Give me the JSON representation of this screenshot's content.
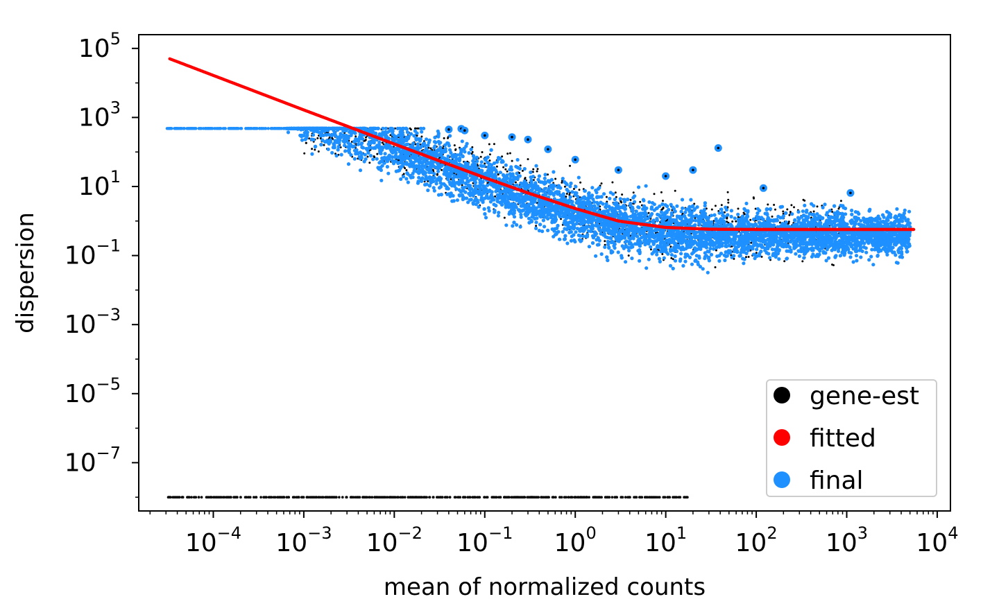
{
  "chart_data": {
    "type": "scatter",
    "title": "",
    "xlabel": "mean of normalized counts",
    "ylabel": "dispersion",
    "xscale": "log",
    "yscale": "log",
    "xlim": [
      1.5e-05,
      14000.0
    ],
    "ylim": [
      4e-09,
      250000.0
    ],
    "x_tick_exponents": [
      -4,
      -3,
      -2,
      -1,
      0,
      1,
      2,
      3,
      4
    ],
    "y_tick_exponents": [
      -7,
      -5,
      -3,
      -1,
      1,
      3,
      5
    ],
    "tick_base": "10",
    "grid": false,
    "legend_position": "lower-right",
    "series": [
      {
        "name": "gene-est",
        "color": "#000000",
        "description_points": [
          [
            3e-05,
            1e-08
          ],
          [
            0.0001,
            1e-08
          ],
          [
            0.001,
            1e-08
          ],
          [
            0.01,
            1e-08
          ],
          [
            0.1,
            1e-08
          ],
          [
            1,
            1e-08
          ],
          [
            10,
            1e-08
          ],
          [
            18,
            1e-08
          ],
          [
            0.02,
            400
          ],
          [
            0.05,
            300
          ],
          [
            0.1,
            150
          ],
          [
            0.3,
            60
          ],
          [
            1,
            15
          ],
          [
            3,
            5
          ],
          [
            10,
            3
          ],
          [
            40,
            2
          ],
          [
            100,
            1.5
          ],
          [
            0.5,
            0.1
          ],
          [
            2,
            0.08
          ],
          [
            5,
            0.05
          ],
          [
            20,
            0.04
          ]
        ]
      },
      {
        "name": "fitted",
        "color": "#ff0000",
        "curve": [
          [
            3.3e-05,
            50000
          ],
          [
            0.0001,
            16500
          ],
          [
            0.0003,
            5500
          ],
          [
            0.001,
            1650
          ],
          [
            0.003,
            560
          ],
          [
            0.01,
            170
          ],
          [
            0.03,
            58
          ],
          [
            0.1,
            18
          ],
          [
            0.3,
            6.5
          ],
          [
            1,
            2.3
          ],
          [
            3,
            1.0
          ],
          [
            10,
            0.65
          ],
          [
            30,
            0.58
          ],
          [
            100,
            0.57
          ],
          [
            300,
            0.57
          ],
          [
            1000,
            0.57
          ],
          [
            5500,
            0.57
          ]
        ]
      },
      {
        "name": "final",
        "color": "#1e90ff",
        "outliers": [
          [
            0.04,
            450
          ],
          [
            0.055,
            470
          ],
          [
            0.06,
            420
          ],
          [
            0.1,
            300
          ],
          [
            0.2,
            270
          ],
          [
            0.3,
            230
          ],
          [
            0.5,
            120
          ],
          [
            1,
            60
          ],
          [
            3,
            30
          ],
          [
            10,
            20
          ],
          [
            20,
            30
          ],
          [
            38,
            130
          ],
          [
            120,
            9
          ],
          [
            1100,
            6.5
          ]
        ]
      }
    ]
  }
}
